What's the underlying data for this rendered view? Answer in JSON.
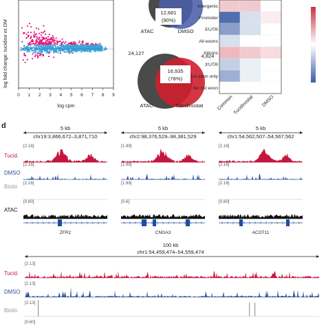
{
  "panel_d_label": "d",
  "ma_plot": {
    "ylabel": "log fold change: tucidino vs DM",
    "xlabel": "log cpm",
    "xticks": [
      "0",
      "1",
      "2",
      "3",
      "4",
      "5",
      "6",
      "7",
      "8",
      "9"
    ]
  },
  "venn_top": {
    "center_value": "12,681",
    "center_pct": "(90%)",
    "right_label": "DMSO",
    "left_label": "ATAC"
  },
  "venn_bottom": {
    "left_count": "24,127",
    "right_count": "4,824",
    "center_value": "16,935",
    "center_pct": "(78%)",
    "left_label": "ATAC",
    "right_label": "Tucidinostat"
  },
  "heatmap": {
    "rows": [
      "Intergenic",
      "Promoter",
      "5′UTR",
      "All exons",
      "Introns",
      "3′UTR",
      "1st exon only",
      "No 1st exon"
    ],
    "columns": [
      "Common",
      "Tucidinostat",
      "DMSO"
    ]
  },
  "tracks_top": {
    "loci": [
      {
        "size": "5 kb",
        "coords": "chr19:3,866,672–3,871,710",
        "gene": "ZFR2",
        "ranges": {
          "tucid": "[2.16]",
          "dmso": "[2.16]",
          "biotin": "[2.16]",
          "atac": "[0.60]"
        }
      },
      {
        "size": "5 kb",
        "coords": "chr2:98,376,529–98,381,529",
        "gene": "CNGA3",
        "ranges": {
          "tucid": "[1.99]",
          "dmso": "[1.99]",
          "biotin": "[1.99]",
          "atac": "[0.6]"
        }
      },
      {
        "size": "5 kb",
        "coords": "chr1:54,562,507–54,567,562",
        "gene": "ACOT11",
        "ranges": {
          "tucid": "[2.16]",
          "dmso": "[2.16]",
          "biotin": "[2.16]",
          "atac": "[0.60]"
        }
      }
    ],
    "track_labels": {
      "tucid": "Tucid.",
      "dmso": "DMSO",
      "biotin": "Biotin",
      "atac": "ATAC"
    }
  },
  "tracks_bottom": {
    "size": "100 kb",
    "coords": "chr1:54,459,474–54,559,474",
    "ranges": {
      "tucid": "[2.13]",
      "dmso": "[2.13]",
      "biotin": "[2.13]",
      "atac": "[0.60]"
    },
    "track_labels": {
      "tucid": "Tucid.",
      "dmso": "DMSO",
      "biotin": "Biotin"
    }
  },
  "colors": {
    "tucid": "#c4163f",
    "dmso": "#274f9c",
    "biotin": "#9a9a9a",
    "atac": "#111111",
    "ma_pink": "#e8177a",
    "ma_blue": "#3aa4d8",
    "venn_dmso": "#4a5fa8",
    "venn_tucid": "#d01f2e",
    "venn_atac": "#4a4a4a"
  },
  "chart_data": [
    {
      "type": "scatter",
      "title": "",
      "xlabel": "log cpm",
      "ylabel": "log fold change: tucidino vs DM",
      "xlim": [
        0,
        9
      ],
      "note": "dense MA-plot cloud; pink = significant, blue = not significant"
    },
    {
      "type": "heatmap",
      "rows": [
        "Intergenic",
        "Promoter",
        "5′UTR",
        "All exons",
        "Introns",
        "3′UTR",
        "1st exon only",
        "No 1st exon"
      ],
      "columns": [
        "Common",
        "Tucidinostat",
        "DMSO"
      ],
      "values": [
        [
          0.3,
          0.3,
          0.0
        ],
        [
          -0.9,
          -0.2,
          0.1
        ],
        [
          -0.6,
          -0.2,
          0.0
        ],
        [
          -0.2,
          0.0,
          0.0
        ],
        [
          0.4,
          0.3,
          0.2
        ],
        [
          -0.3,
          -0.1,
          0.0
        ],
        [
          -0.5,
          -0.1,
          0.0
        ],
        [
          0.0,
          0.0,
          0.0
        ]
      ]
    }
  ]
}
